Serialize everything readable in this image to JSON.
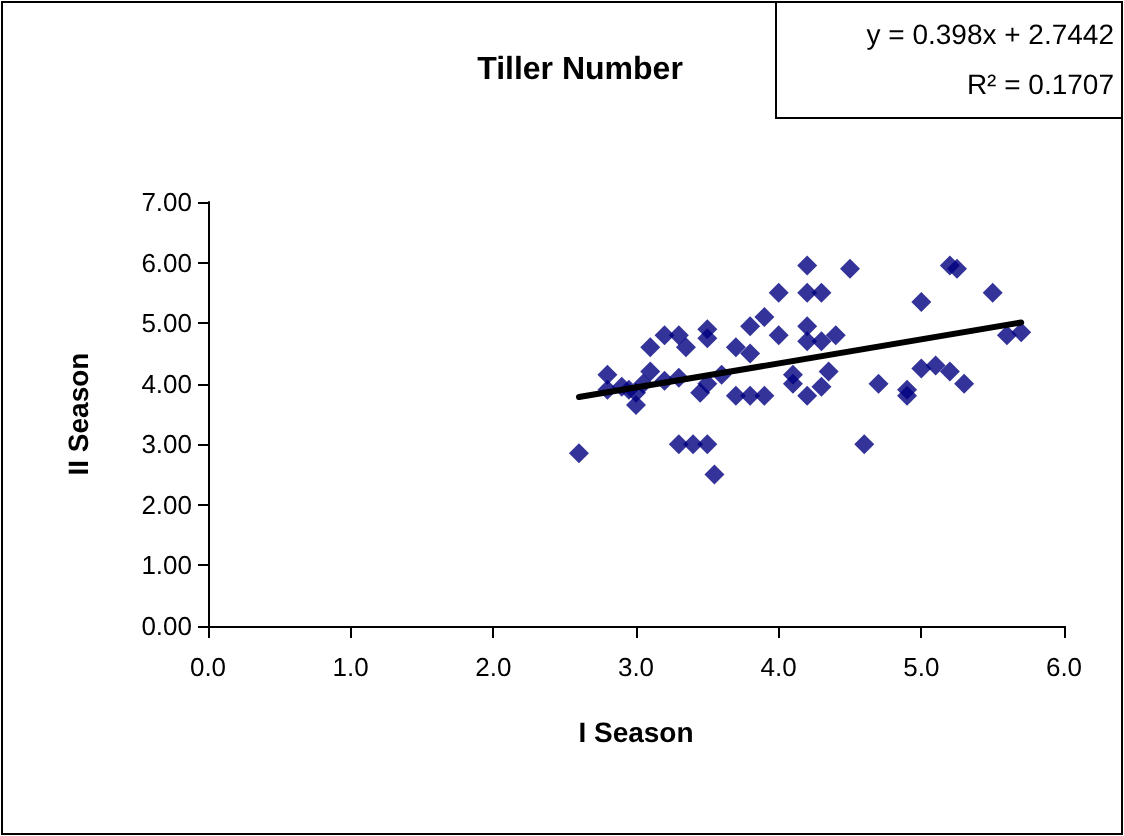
{
  "chart_data": {
    "type": "scatter",
    "title": "Tiller Number",
    "xlabel": "I Season",
    "ylabel": "II Season",
    "marker": "diamond",
    "grid": false,
    "xlim": [
      0,
      6
    ],
    "xticks": [
      {
        "value": 0,
        "label": "0.0"
      },
      {
        "value": 1,
        "label": "1.0"
      },
      {
        "value": 2,
        "label": "2.0"
      },
      {
        "value": 3,
        "label": "3.0"
      },
      {
        "value": 4,
        "label": "4.0"
      },
      {
        "value": 5,
        "label": "5.0"
      },
      {
        "value": 6,
        "label": "6.0"
      }
    ],
    "ylim": [
      0,
      7
    ],
    "yticks": [
      {
        "value": 0,
        "label": "0.00"
      },
      {
        "value": 1,
        "label": "1.00"
      },
      {
        "value": 2,
        "label": "2.00"
      },
      {
        "value": 3,
        "label": "3.00"
      },
      {
        "value": 4,
        "label": "4.00"
      },
      {
        "value": 5,
        "label": "5.00"
      },
      {
        "value": 6,
        "label": "6.00"
      },
      {
        "value": 7,
        "label": "7.00"
      }
    ],
    "annotations": [
      "y = 0.398x + 2.7442",
      "R² = 0.1707"
    ],
    "series": [
      {
        "color": "#000080",
        "x": [
          2.6,
          2.8,
          2.8,
          2.9,
          2.95,
          3.0,
          3.0,
          3.05,
          3.1,
          3.1,
          3.2,
          3.2,
          3.3,
          3.3,
          3.35,
          3.3,
          3.4,
          3.5,
          3.5,
          3.5,
          3.5,
          3.45,
          3.55,
          3.6,
          3.7,
          3.7,
          3.8,
          3.8,
          3.8,
          3.9,
          3.9,
          4.0,
          4.0,
          4.1,
          4.1,
          4.2,
          4.2,
          4.2,
          4.2,
          4.2,
          4.3,
          4.3,
          4.3,
          4.35,
          4.4,
          4.5,
          4.6,
          4.7,
          4.9,
          4.9,
          5.0,
          5.0,
          5.1,
          5.2,
          5.25,
          5.2,
          5.3,
          5.5,
          5.6,
          5.7
        ],
        "values": [
          2.85,
          4.15,
          3.9,
          3.95,
          3.9,
          3.65,
          3.85,
          4.0,
          4.2,
          4.6,
          4.8,
          4.05,
          4.8,
          4.1,
          4.6,
          3.0,
          3.0,
          3.0,
          4.9,
          4.75,
          4.0,
          3.85,
          2.5,
          4.15,
          3.8,
          4.6,
          4.95,
          4.5,
          3.8,
          5.1,
          3.8,
          5.5,
          4.8,
          4.0,
          4.15,
          5.95,
          5.5,
          4.95,
          4.7,
          3.8,
          5.5,
          4.7,
          3.95,
          4.2,
          4.8,
          5.9,
          3.0,
          4.0,
          3.9,
          3.8,
          5.35,
          4.25,
          4.3,
          5.95,
          5.9,
          4.2,
          4.0,
          5.5,
          4.8,
          4.85
        ]
      },
      {
        "type": "line",
        "color": "#000000",
        "line_style": "solid",
        "marker": "none",
        "x": [
          2.6,
          5.7
        ],
        "values": [
          3.78,
          5.01
        ]
      }
    ]
  }
}
